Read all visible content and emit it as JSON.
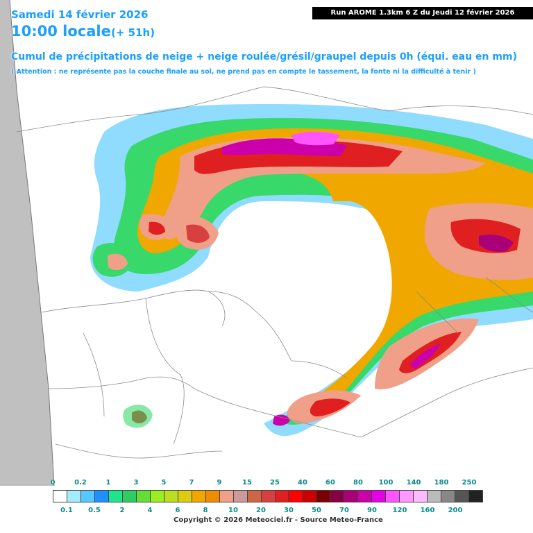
{
  "header": {
    "date": "Samedi 14 février 2026",
    "time": "10:00 locale",
    "lead": "(+ 51h)",
    "run": "Run AROME 1.3km 6 Z du Jeudi 12 février 2026",
    "title": "Cumul de précipitations de neige + neige roulée/grésil/graupel depuis 0h (équi. eau en mm)",
    "note": "( Attention : ne représente pas la couche finale au sol, ne prend pas en compte le tassement, la fonte ni la difficulté à tenir )"
  },
  "legend": {
    "upper_labels": [
      "0",
      "0.2",
      "1",
      "3",
      "5",
      "7",
      "9",
      "15",
      "25",
      "40",
      "60",
      "80",
      "100",
      "140",
      "180",
      "250"
    ],
    "lower_labels": [
      "0.1",
      "0.5",
      "2",
      "4",
      "6",
      "8",
      "10",
      "20",
      "30",
      "50",
      "70",
      "90",
      "120",
      "160",
      "200"
    ],
    "colors": [
      "#ffffff",
      "#a6ecff",
      "#55c8ff",
      "#1e90ff",
      "#1ee58c",
      "#2ecc62",
      "#66dd33",
      "#99ee22",
      "#bbdd22",
      "#ddcc11",
      "#f0a800",
      "#f08c00",
      "#f0a088",
      "#cc9a9a",
      "#cc6644",
      "#d84040",
      "#e02020",
      "#ff0000",
      "#cc0000",
      "#7a0000",
      "#880044",
      "#aa0077",
      "#cc00aa",
      "#e600e6",
      "#ff55ff",
      "#ff99ff",
      "#ffbbff",
      "#bbbbbb",
      "#888888",
      "#555555",
      "#222222"
    ]
  },
  "copyright": "Copyright © 2026 Meteociel.fr - Source Meteo-France"
}
